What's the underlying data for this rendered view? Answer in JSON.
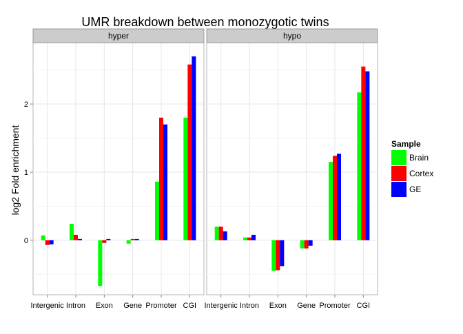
{
  "chart_data": {
    "type": "bar",
    "title": "UMR breakdown between monozygotic twins",
    "xlabel": "",
    "ylabel": "log2 Fold enrichment",
    "ylim": [
      -0.8,
      2.9
    ],
    "yticks": [
      0,
      1,
      2
    ],
    "grid": true,
    "legend_position": "right",
    "legend_title": "Sample",
    "categories": [
      "Intergenic",
      "Intron",
      "Exon",
      "Gene",
      "Promoter",
      "CGI"
    ],
    "series_names": [
      "Brain",
      "Cortex",
      "GE"
    ],
    "colors": {
      "Brain": "#00ff00",
      "Cortex": "#ff0000",
      "GE": "#0000ff"
    },
    "panels": [
      {
        "label": "hyper",
        "series": [
          {
            "name": "Brain",
            "values": [
              0.07,
              0.24,
              -0.67,
              -0.05,
              0.86,
              1.8
            ]
          },
          {
            "name": "Cortex",
            "values": [
              -0.07,
              0.08,
              -0.04,
              0.02,
              1.8,
              2.58
            ]
          },
          {
            "name": "GE",
            "values": [
              -0.06,
              0.02,
              0.02,
              0.02,
              1.7,
              2.7
            ]
          }
        ]
      },
      {
        "label": "hypo",
        "series": [
          {
            "name": "Brain",
            "values": [
              0.2,
              0.04,
              -0.45,
              -0.12,
              1.15,
              2.17
            ]
          },
          {
            "name": "Cortex",
            "values": [
              0.2,
              0.04,
              -0.44,
              -0.12,
              1.24,
              2.55
            ]
          },
          {
            "name": "GE",
            "values": [
              0.13,
              0.08,
              -0.38,
              -0.08,
              1.27,
              2.48
            ]
          }
        ]
      }
    ]
  }
}
